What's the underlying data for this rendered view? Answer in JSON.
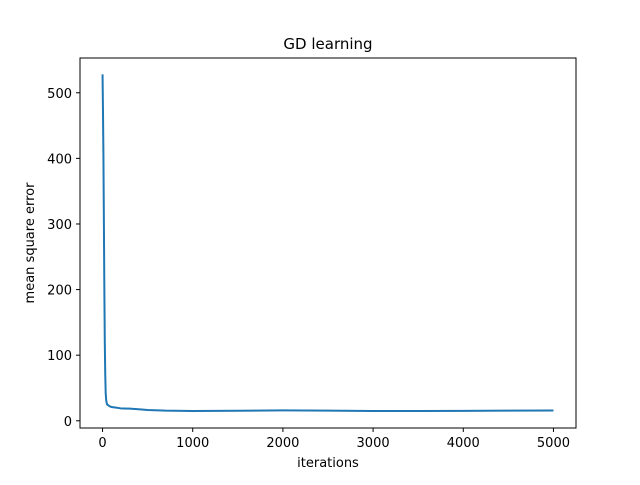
{
  "chart_data": {
    "type": "line",
    "title": "GD learning",
    "xlabel": "iterations",
    "ylabel": "mean square error",
    "xlim": [
      -250,
      5250
    ],
    "ylim": [
      -11,
      553
    ],
    "xticks": [
      0,
      1000,
      2000,
      3000,
      4000,
      5000
    ],
    "yticks": [
      0,
      100,
      200,
      300,
      400,
      500
    ],
    "xtick_labels": [
      "0",
      "1000",
      "2000",
      "3000",
      "4000",
      "5000"
    ],
    "ytick_labels": [
      "0",
      "100",
      "200",
      "300",
      "400",
      "500"
    ],
    "grid": false,
    "series": [
      {
        "color": "#1f77b4",
        "x": [
          0,
          5,
          10,
          15,
          20,
          25,
          30,
          35,
          40,
          45,
          50,
          60,
          80,
          100,
          150,
          200,
          300,
          400,
          500,
          700,
          1000,
          1500,
          2000,
          2500,
          3000,
          3500,
          4000,
          4500,
          5000
        ],
        "y": [
          528,
          470,
          400,
          300,
          200,
          120,
          70,
          42,
          32,
          28,
          25,
          24,
          22,
          21,
          20,
          19,
          18.5,
          17.5,
          16.5,
          15.5,
          15,
          15.2,
          15.8,
          15.4,
          15,
          15,
          15.1,
          15.4,
          15.6
        ]
      }
    ]
  }
}
